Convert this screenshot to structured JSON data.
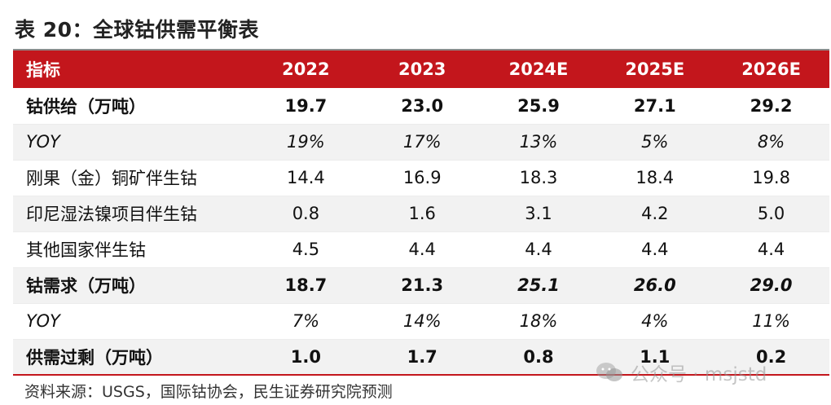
{
  "title": "表 20：全球钴供需平衡表",
  "table": {
    "headers": [
      "指标",
      "2022",
      "2023",
      "2024E",
      "2025E",
      "2026E"
    ],
    "rows": [
      {
        "cells": [
          "钴供给（万吨）",
          "19.7",
          "23.0",
          "25.9",
          "27.1",
          "29.2"
        ]
      },
      {
        "cells": [
          "YOY",
          "19%",
          "17%",
          "13%",
          "5%",
          "8%"
        ]
      },
      {
        "cells": [
          "刚果（金）铜矿伴生钴",
          "14.4",
          "16.9",
          "18.3",
          "18.4",
          "19.8"
        ]
      },
      {
        "cells": [
          "印尼湿法镍项目伴生钴",
          "0.8",
          "1.6",
          "3.1",
          "4.2",
          "5.0"
        ]
      },
      {
        "cells": [
          "其他国家伴生钴",
          "4.5",
          "4.4",
          "4.4",
          "4.4",
          "4.4"
        ]
      },
      {
        "cells": [
          "钴需求（万吨）",
          "18.7",
          "21.3",
          "25.1",
          "26.0",
          "29.0"
        ]
      },
      {
        "cells": [
          "YOY",
          "7%",
          "14%",
          "18%",
          "4%",
          "11%"
        ]
      },
      {
        "cells": [
          "供需过剩（万吨）",
          "1.0",
          "1.7",
          "0.8",
          "1.1",
          "0.2"
        ]
      }
    ]
  },
  "source": "资料来源：USGS，国际钴协会，民生证券研究院预测",
  "watermark": {
    "text": "公众号 · msjstd",
    "icon": "wechat-icon"
  },
  "colors": {
    "header_bg": "#c3161c",
    "shade_bg": "#f2f2f2"
  }
}
